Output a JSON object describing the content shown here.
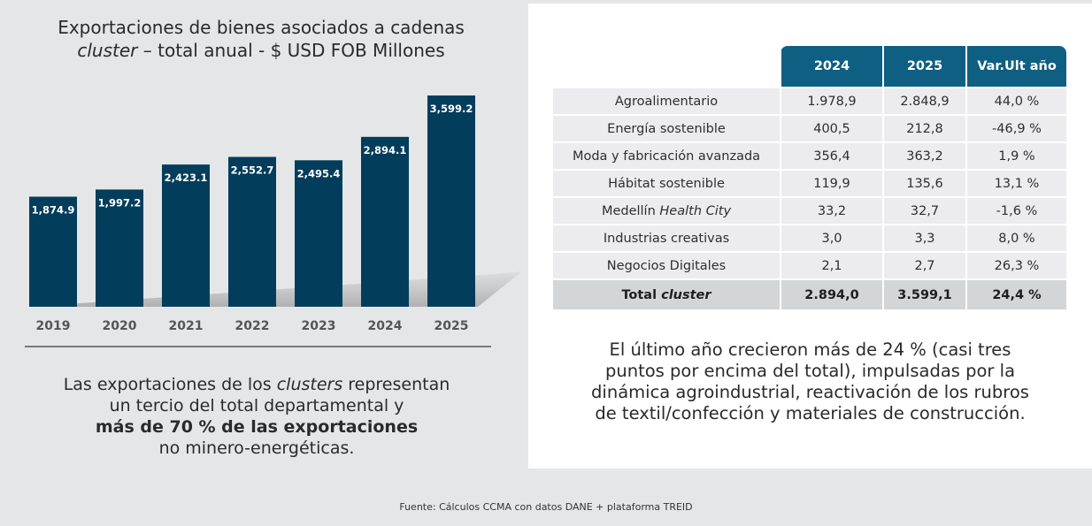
{
  "chart_data": {
    "type": "bar",
    "title_line1": "Exportaciones de bienes asociados a cadenas",
    "title_line2_italic": "cluster",
    "title_line2_rest": " – total anual - $ USD FOB Millones",
    "categories": [
      "2019",
      "2020",
      "2021",
      "2022",
      "2023",
      "2024",
      "2025"
    ],
    "values": [
      1874.9,
      1997.2,
      2423.1,
      2552.7,
      2495.4,
      2894.1,
      3599.2
    ],
    "labels": [
      "1,874.9",
      "1,997.2",
      "2,423.1",
      "2,552.7",
      "2,495.4",
      "2,894.1",
      "3,599.2"
    ],
    "xlabel": "",
    "ylabel": "",
    "ylim": [
      0,
      3599.2
    ],
    "grid": false,
    "bar_color": "#033d5c"
  },
  "left_note": {
    "l1_a": "Las exportaciones de los ",
    "l1_it": "clusters",
    "l1_b": " representan",
    "l2": "un tercio del total departamental y",
    "l3_bold": "más de 70 % de las exportaciones",
    "l4": "no minero-energéticas."
  },
  "table": {
    "headers": [
      "2024",
      "2025",
      "Var.Ult año"
    ],
    "rows": [
      {
        "label": "Agroalimentario",
        "v2024": "1.978,9",
        "v2025": "2.848,9",
        "var": "44,0 %"
      },
      {
        "label": "Energía sostenible",
        "v2024": "400,5",
        "v2025": "212,8",
        "var": "-46,9 %"
      },
      {
        "label": "Moda y fabricación avanzada",
        "v2024": "356,4",
        "v2025": "363,2",
        "var": "1,9 %"
      },
      {
        "label": "Hábitat sostenible",
        "v2024": "119,9",
        "v2025": "135,6",
        "var": "13,1 %"
      },
      {
        "label_a": "Medellín ",
        "label_it": "Health City",
        "v2024": "33,2",
        "v2025": "32,7",
        "var": "-1,6 %"
      },
      {
        "label": "Industrias creativas",
        "v2024": "3,0",
        "v2025": "3,3",
        "var": "8,0 %"
      },
      {
        "label": "Negocios Digitales",
        "v2024": "2,1",
        "v2025": "2,7",
        "var": "26,3 %"
      }
    ],
    "total": {
      "label_a": "Total ",
      "label_it": "cluster",
      "v2024": "2.894,0",
      "v2025": "3.599,1",
      "var": "24,4 %"
    },
    "header_color": "#0f5f82"
  },
  "right_note": {
    "l1": "El último año crecieron más de 24 % (casi tres",
    "l2": "puntos por encima del total), impulsadas por la",
    "l3": "dinámica agroindustrial, reactivación de los rubros",
    "l4": "de textil/confección y materiales de construcción."
  },
  "source": "Fuente: Cálculos CCMA con datos DANE + plataforma TREID"
}
